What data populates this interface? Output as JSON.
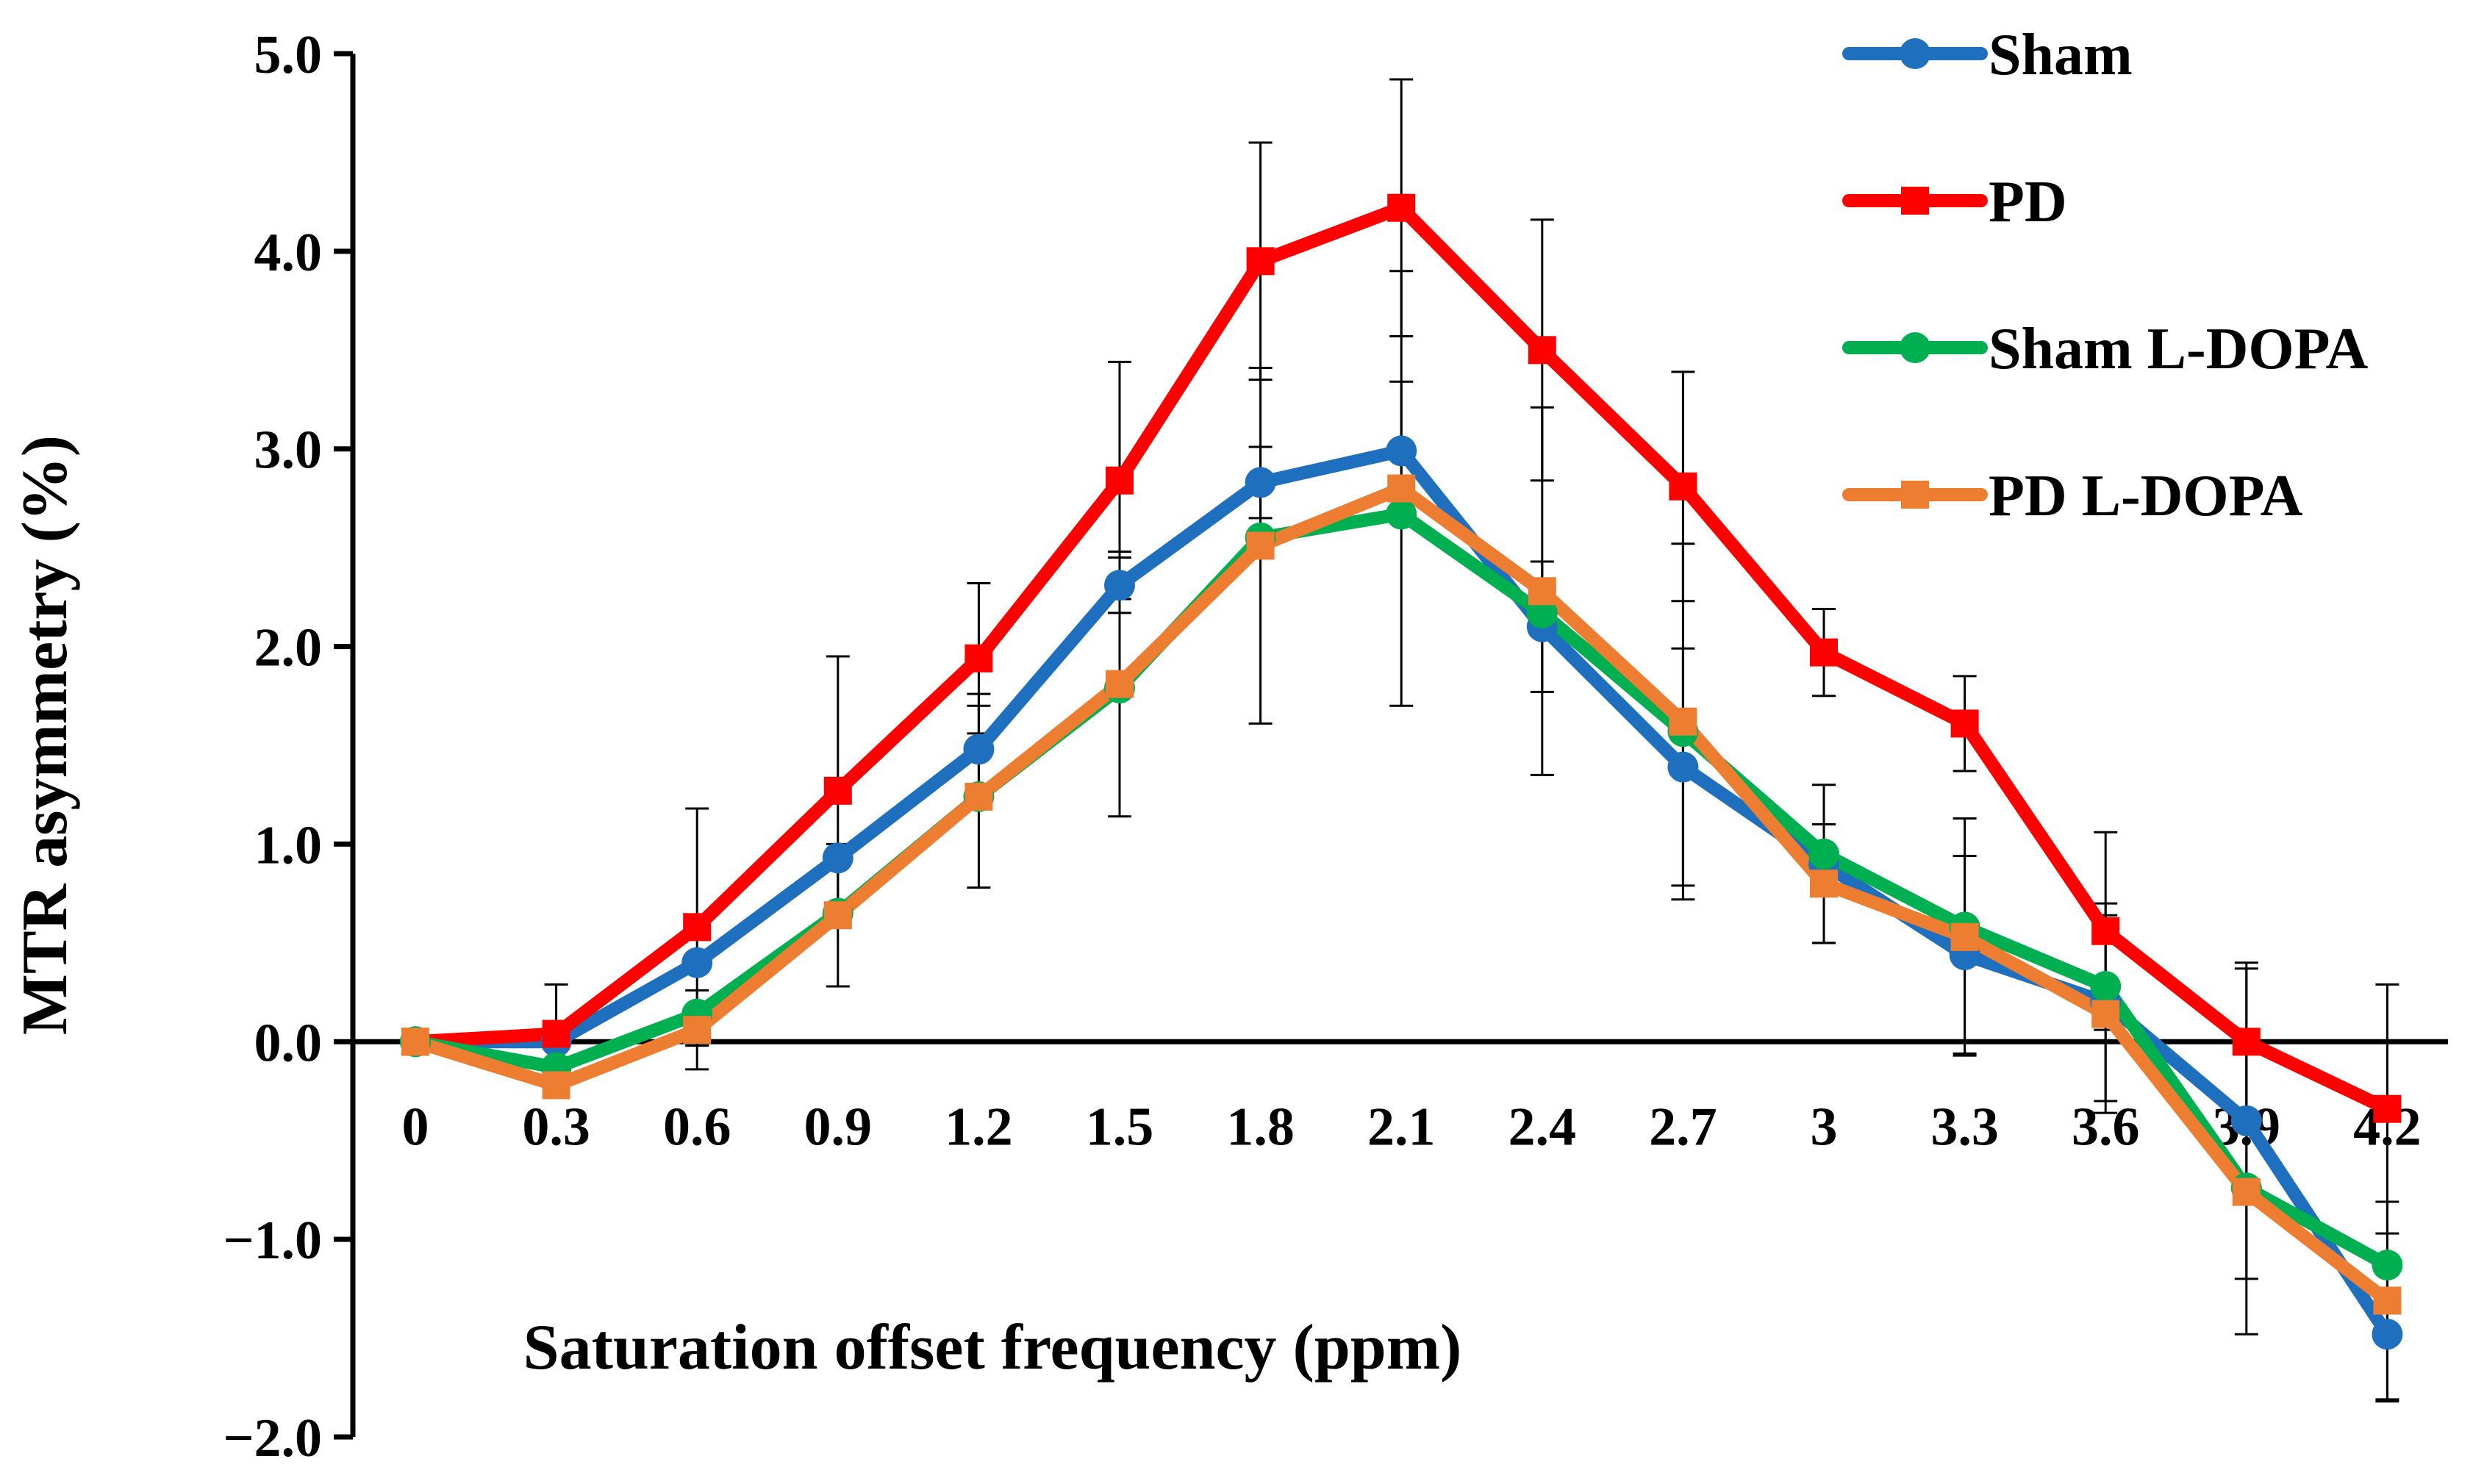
{
  "chart_data": {
    "type": "line",
    "title": "",
    "xlabel": "Saturation offset frequency (ppm)",
    "ylabel": "MTR asymmetry (%)",
    "categories": [
      "0",
      "0.3",
      "0.6",
      "0.9",
      "1.2",
      "1.5",
      "1.8",
      "2.1",
      "2.4",
      "2.7",
      "3",
      "3.3",
      "3.6",
      "3.9",
      "4.2"
    ],
    "ylim": [
      -2.0,
      5.0
    ],
    "yticks": [
      5.0,
      4.0,
      3.0,
      2.0,
      1.0,
      0.0,
      -1.0,
      -2.0
    ],
    "ytick_labels": [
      "5.0",
      "4.0",
      "3.0",
      "2.0",
      "1.0",
      "0.0",
      "−1.0",
      "−2.0"
    ],
    "grid": false,
    "legend_position": "top-right",
    "series": [
      {
        "name": "Sham",
        "color": "#1F6FBF",
        "marker": "circle",
        "values": [
          0,
          0.0,
          0.4,
          0.93,
          1.48,
          2.31,
          2.83,
          2.99,
          2.1,
          1.39,
          0.9,
          0.44,
          0.2,
          -0.4,
          -1.48
        ],
        "error": [
          0,
          0,
          0,
          0,
          0.28,
          0.14,
          0.18,
          0.35,
          0.33,
          0.6,
          0.4,
          0.5,
          0.5,
          0.8,
          0.34
        ]
      },
      {
        "name": "PD",
        "color": "#FF0000",
        "marker": "square",
        "values": [
          0,
          0.04,
          0.58,
          1.27,
          1.94,
          2.84,
          3.95,
          4.22,
          3.5,
          2.81,
          1.97,
          1.61,
          0.56,
          0.0,
          -0.34
        ],
        "error": [
          0,
          0.25,
          0.6,
          0.68,
          0.38,
          0.6,
          0.6,
          0.65,
          0.66,
          0.58,
          0.22,
          0.24,
          0.5,
          0.37,
          0.63
        ]
      },
      {
        "name": "Sham L-DOPA",
        "color": "#00B050",
        "marker": "circle",
        "values": [
          0,
          -0.13,
          0.14,
          0.65,
          1.24,
          1.79,
          2.55,
          2.67,
          2.17,
          1.57,
          0.95,
          0.58,
          0.28,
          -0.74,
          -1.13
        ],
        "error": [
          0,
          0,
          0,
          0,
          0,
          0,
          0,
          0,
          0,
          0,
          0,
          0,
          0,
          0,
          0
        ]
      },
      {
        "name": "PD L-DOPA",
        "color": "#ED7D31",
        "marker": "square",
        "values": [
          0,
          -0.22,
          0.06,
          0.64,
          1.24,
          1.81,
          2.51,
          2.8,
          2.28,
          1.62,
          0.8,
          0.53,
          0.14,
          -0.76,
          -1.31
        ],
        "error": [
          0,
          0,
          0.2,
          0.36,
          0.46,
          0.67,
          0.9,
          1.1,
          0.93,
          0.9,
          0.3,
          0.6,
          0.5,
          0.72,
          0.5
        ]
      }
    ]
  }
}
